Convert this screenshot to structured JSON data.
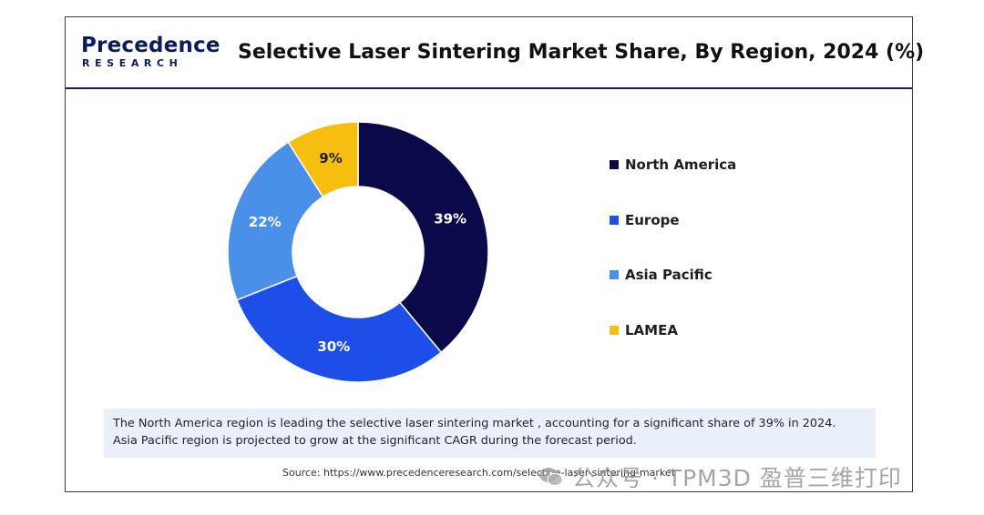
{
  "logo": {
    "top": "Precedence",
    "bottom": "RESEARCH"
  },
  "colors": {
    "north_america": "#0a0a4a",
    "europe": "#1d4fe8",
    "asia_pacific": "#4a90e8",
    "lamea": "#f6be0e",
    "note_bg": "#e9f0fb",
    "brand": "#0b1c5e"
  },
  "chart_data": {
    "type": "pie",
    "variant": "donut",
    "title": "Selective Laser Sintering Market Share, By Region, 2024 (%)",
    "categories": [
      "North America",
      "Europe",
      "Asia Pacific",
      "LAMEA"
    ],
    "values": [
      39,
      30,
      22,
      9
    ],
    "data_labels": [
      "39%",
      "30%",
      "22%",
      "9%"
    ],
    "unit": "%",
    "start": "12 o'clock, clockwise",
    "legend_position": "right"
  },
  "note": {
    "line1": "The North America region is leading the selective laser sintering market , accounting for a significant share of 39% in 2024.",
    "line2": "Asia Pacific region is projected to grow at the significant CAGR during the forecast period."
  },
  "source": "Source: https://www.precedenceresearch.com/selective-laser-sintering-market",
  "watermark": "公众号 · TPM3D 盈普三维打印"
}
